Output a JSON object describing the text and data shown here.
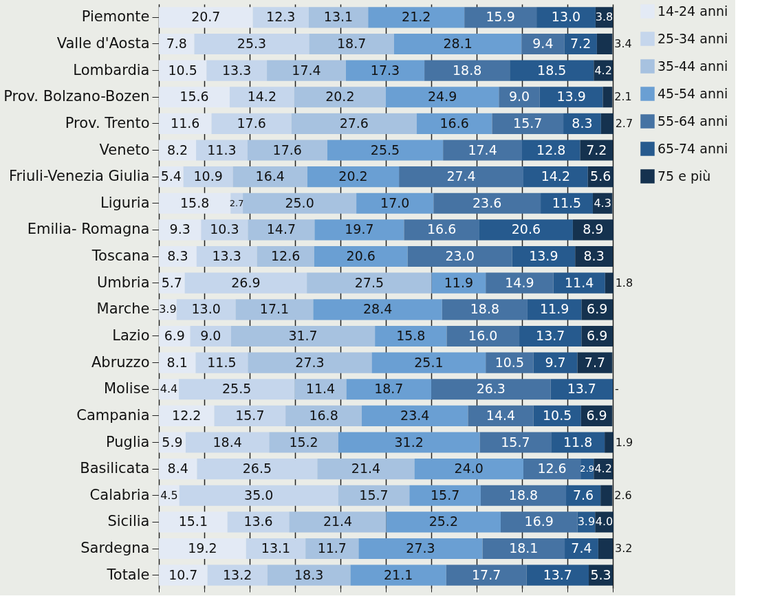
{
  "chart_data": {
    "type": "bar",
    "orientation": "horizontal",
    "stacked": true,
    "categories": [
      "Piemonte",
      "Valle d'Aosta",
      "Lombardia",
      "Prov. Bolzano-Bozen",
      "Prov. Trento",
      "Veneto",
      "Friuli-Venezia Giulia",
      "Liguria",
      "Emilia- Romagna",
      "Toscana",
      "Umbria",
      "Marche",
      "Lazio",
      "Abruzzo",
      "Molise",
      "Campania",
      "Puglia",
      "Basilicata",
      "Calabria",
      "Sicilia",
      "Sardegna",
      "Totale"
    ],
    "xlim": [
      0,
      100
    ],
    "xticks": [
      {
        "value": 0,
        "label": null
      },
      {
        "value": 10,
        "label": null
      },
      {
        "value": 20,
        "label": null
      },
      {
        "value": 30,
        "label": null
      },
      {
        "value": 40,
        "label": null
      },
      {
        "value": 50,
        "label": null
      },
      {
        "value": 60,
        "label": null
      },
      {
        "value": 70,
        "label": null
      },
      {
        "value": 80,
        "label": null
      },
      {
        "value": 90,
        "label": null
      },
      {
        "value": 100,
        "label": null
      }
    ],
    "tick_labels": "y",
    "grid": "x",
    "legend": "right",
    "series": [
      {
        "name": "14-24 anni",
        "color": "#e3eaf5",
        "values": [
          20.7,
          7.8,
          10.5,
          15.6,
          11.6,
          8.2,
          5.4,
          15.8,
          9.3,
          8.3,
          5.7,
          3.9,
          6.9,
          8.1,
          4.4,
          12.2,
          5.9,
          8.4,
          4.5,
          15.1,
          19.2,
          10.7
        ],
        "value_labels": [
          "20.7",
          "7.8",
          "10.5",
          "15.6",
          "11.6",
          "8.2",
          "5.4",
          "15.8",
          "9.3",
          "8.3",
          "5.7",
          "3.9",
          "6.9",
          "8.1",
          "4.4",
          "12.2",
          "5.9",
          "8.4",
          "4.5",
          "15.1",
          "19.2",
          "10.7"
        ]
      },
      {
        "name": "25-34 anni",
        "color": "#c5d6ec",
        "values": [
          12.3,
          25.3,
          13.3,
          14.2,
          17.6,
          11.3,
          10.9,
          2.7,
          10.3,
          13.3,
          26.9,
          13.0,
          9.0,
          11.5,
          25.5,
          15.7,
          18.4,
          26.5,
          35.0,
          13.6,
          13.1,
          13.2
        ],
        "value_labels": [
          "12.3",
          "25.3",
          "13.3",
          "14.2",
          "17.6",
          "11.3",
          "10.9",
          "2.7",
          "10.3",
          "13.3",
          "26.9",
          "13.0",
          "9.0",
          "11.5",
          "25.5",
          "15.7",
          "18.4",
          "26.5",
          "35.0",
          "13.6",
          "13.1",
          "13.2"
        ]
      },
      {
        "name": "35-44 anni",
        "color": "#a7c2e0",
        "values": [
          13.1,
          18.7,
          17.4,
          20.2,
          27.6,
          17.6,
          16.4,
          25.0,
          14.7,
          12.6,
          27.5,
          17.1,
          31.7,
          27.3,
          11.4,
          16.8,
          15.2,
          21.4,
          15.7,
          21.4,
          11.7,
          18.3
        ],
        "value_labels": [
          "13.1",
          "18.7",
          "17.4",
          "20.2",
          "27.6",
          "17.6",
          "16.4",
          "25.0",
          "14.7",
          "12.6",
          "27.5",
          "17.1",
          "31.7",
          "27.3",
          "11.4",
          "16.8",
          "15.2",
          "21.4",
          "15.7",
          "21.4",
          "11.7",
          "18.3"
        ]
      },
      {
        "name": "45-54 anni",
        "color": "#6a9fd3",
        "values": [
          21.2,
          28.1,
          17.3,
          24.9,
          16.6,
          25.5,
          20.2,
          17.0,
          19.7,
          20.6,
          11.9,
          28.4,
          15.8,
          25.1,
          18.7,
          23.4,
          31.2,
          24.0,
          15.7,
          25.2,
          27.3,
          21.1
        ],
        "value_labels": [
          "21.2",
          "28.1",
          "17.3",
          "24.9",
          "16.6",
          "25.5",
          "20.2",
          "17.0",
          "19.7",
          "20.6",
          "11.9",
          "28.4",
          "15.8",
          "25.1",
          "18.7",
          "23.4",
          "31.2",
          "24.0",
          "15.7",
          "25.2",
          "27.3",
          "21.1"
        ]
      },
      {
        "name": "55-64 anni",
        "color": "#4673a3",
        "values": [
          15.9,
          9.4,
          18.8,
          9.0,
          15.7,
          17.4,
          27.4,
          23.6,
          16.6,
          23.0,
          14.9,
          18.8,
          16.0,
          10.5,
          26.3,
          14.4,
          15.7,
          12.6,
          18.8,
          16.9,
          18.1,
          17.7
        ],
        "value_labels": [
          "15.9",
          "9.4",
          "18.8",
          "9.0",
          "15.7",
          "17.4",
          "27.4",
          "23.6",
          "16.6",
          "23.0",
          "14.9",
          "18.8",
          "16.0",
          "10.5",
          "26.3",
          "14.4",
          "15.7",
          "12.6",
          "18.8",
          "16.9",
          "18.1",
          "17.7"
        ]
      },
      {
        "name": "65-74 anni",
        "color": "#265a8e",
        "values": [
          13.0,
          7.2,
          18.5,
          13.9,
          8.3,
          12.8,
          14.2,
          11.5,
          20.6,
          13.9,
          11.4,
          11.9,
          13.7,
          9.7,
          13.7,
          10.5,
          11.8,
          2.9,
          7.6,
          3.9,
          7.4,
          13.7
        ],
        "value_labels": [
          "13.0",
          "7.2",
          "18.5",
          "13.9",
          "8.3",
          "12.8",
          "14.2",
          "11.5",
          "20.6",
          "13.9",
          "11.4",
          "11.9",
          "13.7",
          "9.7",
          "13.7",
          "10.5",
          "11.8",
          "2.9",
          "7.6",
          "3.9",
          "7.4",
          "13.7"
        ]
      },
      {
        "name": "75 e più",
        "color": "#15324f",
        "values": [
          3.8,
          3.4,
          4.2,
          2.1,
          2.7,
          7.2,
          5.6,
          4.3,
          8.9,
          8.3,
          1.8,
          6.9,
          6.9,
          7.7,
          0,
          6.9,
          1.9,
          4.2,
          2.6,
          4.0,
          3.2,
          5.3
        ],
        "value_labels": [
          "3.8",
          "3.4",
          "4.2",
          "2.1",
          "2.7",
          "7.2",
          "5.6",
          "4.3",
          "8.9",
          "8.3",
          "1.8",
          "6.9",
          "6.9",
          "7.7",
          "-",
          "6.9",
          "1.9",
          "4.2",
          "2.6",
          "4.0",
          "3.2",
          "5.3"
        ]
      }
    ]
  }
}
